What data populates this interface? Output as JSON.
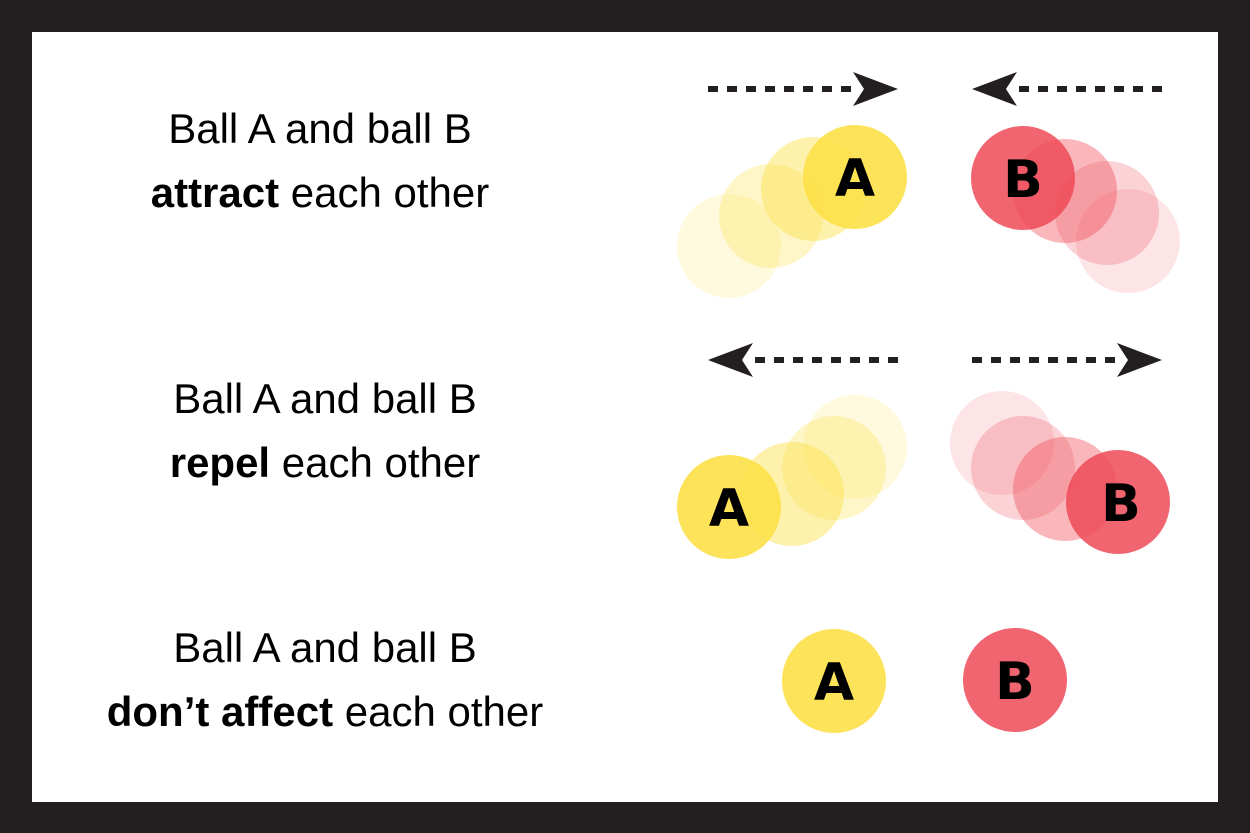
{
  "colors": {
    "frame": "#231f20",
    "background": "#ffffff",
    "ball_a": "#fde047",
    "ball_b": "#ef4a57",
    "arrow": "#231f20",
    "text": "#000000"
  },
  "rows": [
    {
      "line1": "Ball A and ball B",
      "keyword": "attract",
      "rest": " each other",
      "ball_a_label": "A",
      "ball_b_label": "B"
    },
    {
      "line1": "Ball A and ball B",
      "keyword": "repel",
      "rest": " each other",
      "ball_a_label": "A",
      "ball_b_label": "B"
    },
    {
      "line1": "Ball A and ball B",
      "keyword": "don’t affect",
      "rest": " each other",
      "ball_a_label": "A",
      "ball_b_label": "B"
    }
  ]
}
